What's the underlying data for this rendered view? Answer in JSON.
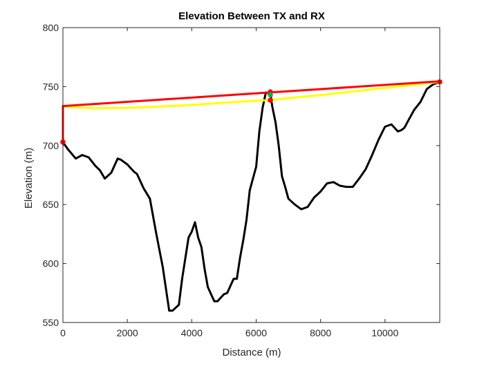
{
  "chart_data": {
    "type": "line",
    "title": "Elevation Between TX and RX",
    "xlabel": "Distance (m)",
    "ylabel": "Elevation (m)",
    "xlim": [
      0,
      11700
    ],
    "ylim": [
      550,
      800
    ],
    "xticks": [
      0,
      2000,
      4000,
      6000,
      8000,
      10000
    ],
    "xtick_labels": [
      "0",
      "2000",
      "4000",
      "6000",
      "8000",
      "10000"
    ],
    "yticks": [
      550,
      600,
      650,
      700,
      750,
      800
    ],
    "ytick_labels": [
      "550",
      "600",
      "650",
      "700",
      "750",
      "800"
    ],
    "grid": false,
    "legend": "none",
    "series": [
      {
        "color": "#000000",
        "x": [
          0,
          150,
          400,
          600,
          800,
          1000,
          1150,
          1300,
          1500,
          1700,
          1800,
          2000,
          2200,
          2300,
          2500,
          2700,
          2900,
          3100,
          3300,
          3400,
          3600,
          3700,
          3900,
          4000,
          4100,
          4200,
          4300,
          4400,
          4500,
          4700,
          4800,
          5000,
          5100,
          5300,
          5400,
          5500,
          5600,
          5700,
          5800,
          5900,
          6000,
          6100,
          6200,
          6300,
          6440,
          6500,
          6600,
          6700,
          6800,
          6900,
          7000,
          7200,
          7400,
          7600,
          7800,
          8000,
          8200,
          8400,
          8600,
          8800,
          9000,
          9200,
          9400,
          9600,
          9800,
          10000,
          10200,
          10400,
          10500,
          10600,
          10700,
          10900,
          11100,
          11300,
          11500,
          11700
        ],
        "y": [
          703,
          697,
          689,
          692,
          690,
          683,
          679,
          672,
          677,
          689,
          688,
          684,
          678,
          676,
          664,
          655,
          625,
          597,
          560,
          560,
          565,
          587,
          622,
          627,
          635,
          622,
          614,
          595,
          580,
          568,
          568,
          574,
          575,
          587,
          587,
          605,
          620,
          637,
          662,
          672,
          682,
          712,
          732,
          745,
          744,
          733,
          720,
          700,
          674,
          665,
          655,
          650,
          646,
          648,
          656,
          661,
          668,
          669,
          666,
          665,
          665,
          672,
          680,
          692,
          705,
          716,
          718,
          712,
          713,
          715,
          720,
          730,
          737,
          748,
          752,
          754
        ]
      },
      {
        "color": "#ffff00",
        "x": [
          0,
          1000,
          2000,
          3000,
          4000,
          5000,
          6000,
          6440,
          7000,
          8000,
          9000,
          10000,
          11000,
          11700
        ],
        "y": [
          733,
          731.6,
          731.9,
          733,
          734.4,
          736.3,
          738,
          738.5,
          740.2,
          742.8,
          745.8,
          748.8,
          751.9,
          754
        ]
      },
      {
        "color": "#0000ff",
        "x": [
          0,
          11700
        ],
        "y": [
          733.5,
          754.5
        ]
      },
      {
        "color": "#ff0000",
        "x": [
          0,
          11700
        ],
        "y": [
          733.5,
          754.5
        ]
      },
      {
        "color": "#ff0000",
        "x": [
          0,
          0
        ],
        "y": [
          703,
          733.5
        ]
      }
    ],
    "markers": [
      {
        "x": 0,
        "y": 703,
        "color": "#ff0000"
      },
      {
        "x": 11700,
        "y": 754,
        "color": "#ff0000"
      },
      {
        "x": 6440,
        "y": 745.5,
        "color": "#ff0000"
      },
      {
        "x": 6440,
        "y": 743,
        "color": "#00b050"
      },
      {
        "x": 6440,
        "y": 738.5,
        "color": "#ff0000"
      }
    ]
  }
}
